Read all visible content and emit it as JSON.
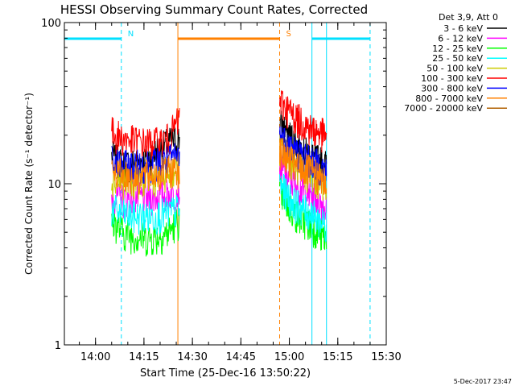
{
  "chart_data": {
    "type": "line",
    "title": "HESSI Observing Summary Count Rates, Corrected",
    "xlabel": "Start Time (25-Dec-16 13:50:22)",
    "ylabel": "Corrected Count Rate (s⁻¹ detector⁻¹)",
    "y_scale": "log",
    "ylim": [
      1,
      100
    ],
    "y_ticks": [
      "1",
      "10",
      "100"
    ],
    "xlim": [
      "13:50:22",
      "15:30:00"
    ],
    "x_ticks": [
      "14:00",
      "14:15",
      "14:30",
      "14:45",
      "15:00",
      "15:15",
      "15:30"
    ],
    "footer": "5-Dec-2017 23:47",
    "legend": {
      "header": "Det 3,9, Att 0",
      "placement": "outside-right",
      "entries": [
        {
          "label": "3 - 6 keV",
          "color": "#000000"
        },
        {
          "label": "6 - 12 keV",
          "color": "#ff00ff"
        },
        {
          "label": "12 - 25 keV",
          "color": "#00ff00"
        },
        {
          "label": "25 - 50 keV",
          "color": "#00ffff"
        },
        {
          "label": "50 - 100 keV",
          "color": "#cccc00"
        },
        {
          "label": "100 - 300 keV",
          "color": "#ff0000"
        },
        {
          "label": "300 - 800 keV",
          "color": "#0000ff"
        },
        {
          "label": "800 - 7000 keV",
          "color": "#ff8000"
        },
        {
          "label": "7000 - 20000 keV",
          "color": "#b06000"
        }
      ]
    },
    "flags": [
      {
        "label": "N",
        "color": "#00e0ff",
        "start": "13:50:22",
        "end": "14:08:00"
      },
      {
        "label": "S",
        "color": "#ff8000",
        "start": "14:25:30",
        "end": "14:57:00"
      },
      {
        "label": "",
        "color": "#00e0ff",
        "start": "15:07:00",
        "end": "15:25:00"
      }
    ],
    "vertical_markers": [
      {
        "time": "13:50:22",
        "color": "#00e0ff",
        "style": "solid"
      },
      {
        "time": "14:08:00",
        "color": "#00e0ff",
        "style": "dashed"
      },
      {
        "time": "14:25:30",
        "color": "#ff8000",
        "style": "solid"
      },
      {
        "time": "14:57:00",
        "color": "#ff8000",
        "style": "dashed"
      },
      {
        "time": "15:07:00",
        "color": "#00e0ff",
        "style": "solid"
      },
      {
        "time": "15:11:30",
        "color": "#00e0ff",
        "style": "solid"
      },
      {
        "time": "15:25:00",
        "color": "#00e0ff",
        "style": "dashed"
      }
    ],
    "segments": [
      {
        "start": "14:05:00",
        "end": "14:26:00"
      },
      {
        "start": "14:57:00",
        "end": "15:11:30"
      }
    ],
    "series": [
      {
        "name": "3 - 6 keV",
        "color": "#000000",
        "values": [
          [
            15,
            13,
            13.5,
            14,
            16,
            18,
            19
          ],
          [
            24,
            21,
            18,
            16,
            15,
            14,
            13
          ]
        ]
      },
      {
        "name": "6 - 12 keV",
        "color": "#ff00ff",
        "values": [
          [
            8.5,
            8,
            8.3,
            8.1,
            8.4,
            8.6,
            9
          ],
          [
            13,
            11,
            10,
            9,
            8.5,
            8,
            7
          ]
        ]
      },
      {
        "name": "12 - 25 keV",
        "color": "#00ff00",
        "values": [
          [
            6,
            5,
            4.8,
            4.6,
            4.7,
            5,
            6
          ],
          [
            9,
            7.5,
            6.5,
            6,
            5.5,
            5,
            4.5
          ]
        ]
      },
      {
        "name": "25 - 50 keV",
        "color": "#00ffff",
        "values": [
          [
            7,
            6.5,
            6.3,
            6.3,
            6.4,
            6.6,
            7
          ],
          [
            10,
            8.5,
            7.5,
            7,
            6.5,
            6,
            5.5
          ]
        ]
      },
      {
        "name": "50 - 100 keV",
        "color": "#cccc00",
        "values": [
          [
            11,
            10.5,
            10.5,
            10.8,
            11,
            12,
            13
          ],
          [
            17,
            15,
            13,
            12,
            11,
            10.5,
            10
          ]
        ]
      },
      {
        "name": "100 - 300 keV",
        "color": "#ff0000",
        "values": [
          [
            21,
            19,
            18.5,
            18,
            18,
            19,
            25
          ],
          [
            33,
            29,
            26,
            24,
            22,
            21,
            20
          ]
        ]
      },
      {
        "name": "300 - 800 keV",
        "color": "#0000ff",
        "values": [
          [
            14,
            13,
            13,
            13.3,
            13.5,
            14,
            15
          ],
          [
            20,
            18,
            16,
            15,
            14,
            13,
            12
          ]
        ]
      },
      {
        "name": "800 - 7000 keV",
        "color": "#ff8000",
        "values": [
          [
            12,
            11.5,
            11,
            11.3,
            11.6,
            12,
            12.5
          ],
          [
            16,
            14.5,
            13,
            12.5,
            12,
            11,
            10
          ]
        ]
      }
    ]
  }
}
